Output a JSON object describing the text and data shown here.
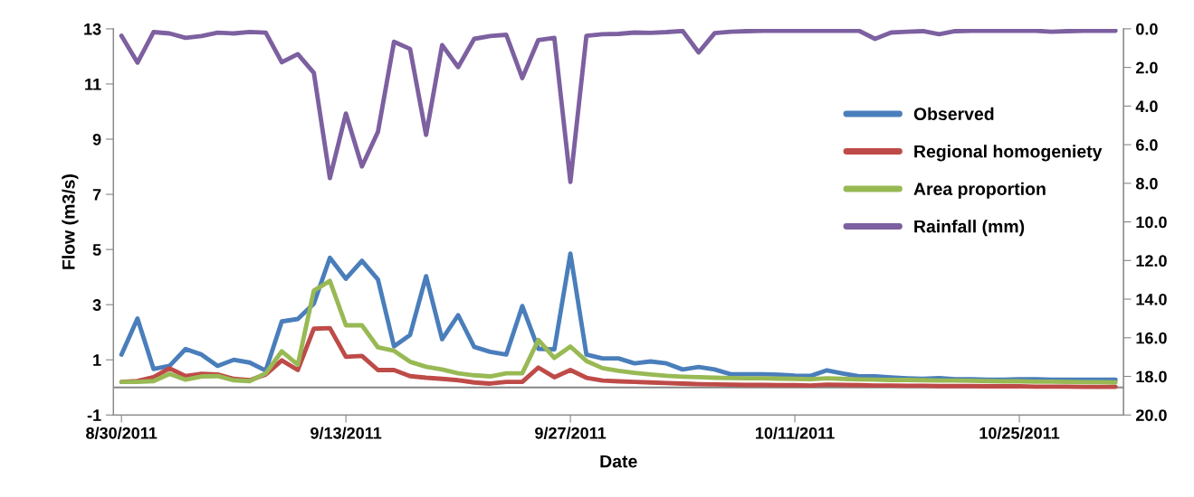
{
  "chart_data": {
    "type": "line",
    "xlabel": "Date",
    "ylabel": "Flow (m3/s)",
    "x": [
      "2011-08-30",
      "2011-08-31",
      "2011-09-01",
      "2011-09-02",
      "2011-09-03",
      "2011-09-04",
      "2011-09-05",
      "2011-09-06",
      "2011-09-07",
      "2011-09-08",
      "2011-09-09",
      "2011-09-10",
      "2011-09-11",
      "2011-09-12",
      "2011-09-13",
      "2011-09-14",
      "2011-09-15",
      "2011-09-16",
      "2011-09-17",
      "2011-09-18",
      "2011-09-19",
      "2011-09-20",
      "2011-09-21",
      "2011-09-22",
      "2011-09-23",
      "2011-09-24",
      "2011-09-25",
      "2011-09-26",
      "2011-09-27",
      "2011-09-28",
      "2011-09-29",
      "2011-09-30",
      "2011-10-01",
      "2011-10-02",
      "2011-10-03",
      "2011-10-04",
      "2011-10-05",
      "2011-10-06",
      "2011-10-07",
      "2011-10-08",
      "2011-10-09",
      "2011-10-10",
      "2011-10-11",
      "2011-10-12",
      "2011-10-13",
      "2011-10-14",
      "2011-10-15",
      "2011-10-16",
      "2011-10-17",
      "2011-10-18",
      "2011-10-19",
      "2011-10-20",
      "2011-10-21",
      "2011-10-22",
      "2011-10-23",
      "2011-10-24",
      "2011-10-25",
      "2011-10-26",
      "2011-10-27",
      "2011-10-28",
      "2011-10-29",
      "2011-10-30",
      "2011-10-31"
    ],
    "xlim": [
      "2011-08-29T12:00",
      "2011-10-31T12:00"
    ],
    "xticks": [
      {
        "value": "2011-08-30",
        "label": "8/30/2011"
      },
      {
        "value": "2011-09-13",
        "label": "9/13/2011"
      },
      {
        "value": "2011-09-27",
        "label": "9/27/2011"
      },
      {
        "value": "2011-10-11",
        "label": "10/11/2011"
      },
      {
        "value": "2011-10-25",
        "label": "10/25/2011"
      }
    ],
    "ylim": [
      -1,
      13
    ],
    "yticks": [
      -1,
      1,
      3,
      5,
      7,
      9,
      11,
      13
    ],
    "y2lim": [
      20,
      0
    ],
    "y2ticks": [
      {
        "value": 0,
        "label": "0.0"
      },
      {
        "value": 2,
        "label": "2.0"
      },
      {
        "value": 4,
        "label": "4.0"
      },
      {
        "value": 6,
        "label": "6.0"
      },
      {
        "value": 8,
        "label": "8.0"
      },
      {
        "value": 10,
        "label": "10.0"
      },
      {
        "value": 12,
        "label": "12.0"
      },
      {
        "value": 14,
        "label": "14.0"
      },
      {
        "value": 16,
        "label": "16.0"
      },
      {
        "value": 18,
        "label": "18.0"
      },
      {
        "value": 20,
        "label": "20.0"
      }
    ],
    "ref_lines": [
      {
        "axis": "y",
        "value": 0,
        "color": "#868686"
      }
    ],
    "grid": false,
    "legend": "right",
    "marker": "none",
    "line_style": "solid",
    "series": [
      {
        "name": "Observed",
        "color": "#4a7ebb",
        "values": [
          1.19,
          2.5,
          0.67,
          0.78,
          1.39,
          1.19,
          0.78,
          1.0,
          0.9,
          0.61,
          2.39,
          2.48,
          3.04,
          4.7,
          3.94,
          4.59,
          3.91,
          1.49,
          1.9,
          4.03,
          1.75,
          2.62,
          1.47,
          1.29,
          1.19,
          2.95,
          1.4,
          1.38,
          4.85,
          1.19,
          1.05,
          1.05,
          0.87,
          0.94,
          0.87,
          0.65,
          0.74,
          0.65,
          0.48,
          0.48,
          0.48,
          0.46,
          0.43,
          0.42,
          0.62,
          0.5,
          0.4,
          0.4,
          0.36,
          0.33,
          0.31,
          0.34,
          0.3,
          0.3,
          0.28,
          0.28,
          0.3,
          0.3,
          0.28,
          0.28,
          0.28,
          0.28,
          0.28
        ]
      },
      {
        "name": "Regional homogeniety",
        "color": "#be4b48",
        "values": [
          0.2,
          0.23,
          0.37,
          0.69,
          0.41,
          0.49,
          0.47,
          0.31,
          0.26,
          0.47,
          0.98,
          0.63,
          2.13,
          2.15,
          1.11,
          1.14,
          0.63,
          0.63,
          0.41,
          0.35,
          0.31,
          0.26,
          0.18,
          0.14,
          0.2,
          0.2,
          0.72,
          0.37,
          0.63,
          0.35,
          0.25,
          0.22,
          0.2,
          0.18,
          0.16,
          0.14,
          0.12,
          0.11,
          0.1,
          0.09,
          0.09,
          0.08,
          0.08,
          0.07,
          0.1,
          0.09,
          0.08,
          0.07,
          0.07,
          0.06,
          0.06,
          0.05,
          0.05,
          0.05,
          0.04,
          0.04,
          0.04,
          0.03,
          0.03,
          0.03,
          0.02,
          0.02,
          0.02
        ]
      },
      {
        "name": "Area proportion",
        "color": "#98b954",
        "values": [
          0.2,
          0.2,
          0.23,
          0.49,
          0.28,
          0.4,
          0.41,
          0.26,
          0.23,
          0.51,
          1.31,
          0.82,
          3.51,
          3.86,
          2.25,
          2.25,
          1.45,
          1.33,
          0.93,
          0.75,
          0.65,
          0.51,
          0.44,
          0.4,
          0.51,
          0.51,
          1.72,
          1.07,
          1.48,
          0.96,
          0.7,
          0.6,
          0.53,
          0.47,
          0.42,
          0.39,
          0.37,
          0.35,
          0.34,
          0.33,
          0.33,
          0.32,
          0.31,
          0.3,
          0.33,
          0.31,
          0.29,
          0.28,
          0.27,
          0.27,
          0.26,
          0.25,
          0.25,
          0.24,
          0.23,
          0.22,
          0.22,
          0.21,
          0.21,
          0.2,
          0.19,
          0.19,
          0.18
        ]
      },
      {
        "name": "Rainfall (mm)",
        "color": "#7d60a0",
        "axis": "y2",
        "values": [
          0.36,
          1.75,
          0.17,
          0.24,
          0.47,
          0.37,
          0.2,
          0.24,
          0.16,
          0.2,
          1.73,
          1.31,
          2.28,
          7.73,
          4.39,
          7.13,
          5.33,
          0.67,
          1.04,
          5.49,
          0.84,
          1.98,
          0.52,
          0.37,
          0.31,
          2.55,
          0.58,
          0.47,
          7.93,
          0.36,
          0.28,
          0.26,
          0.19,
          0.21,
          0.17,
          0.11,
          1.22,
          0.22,
          0.15,
          0.12,
          0.1,
          0.1,
          0.1,
          0.1,
          0.1,
          0.1,
          0.1,
          0.52,
          0.19,
          0.15,
          0.12,
          0.28,
          0.12,
          0.1,
          0.1,
          0.1,
          0.1,
          0.1,
          0.15,
          0.12,
          0.1,
          0.1,
          0.1
        ]
      }
    ]
  }
}
